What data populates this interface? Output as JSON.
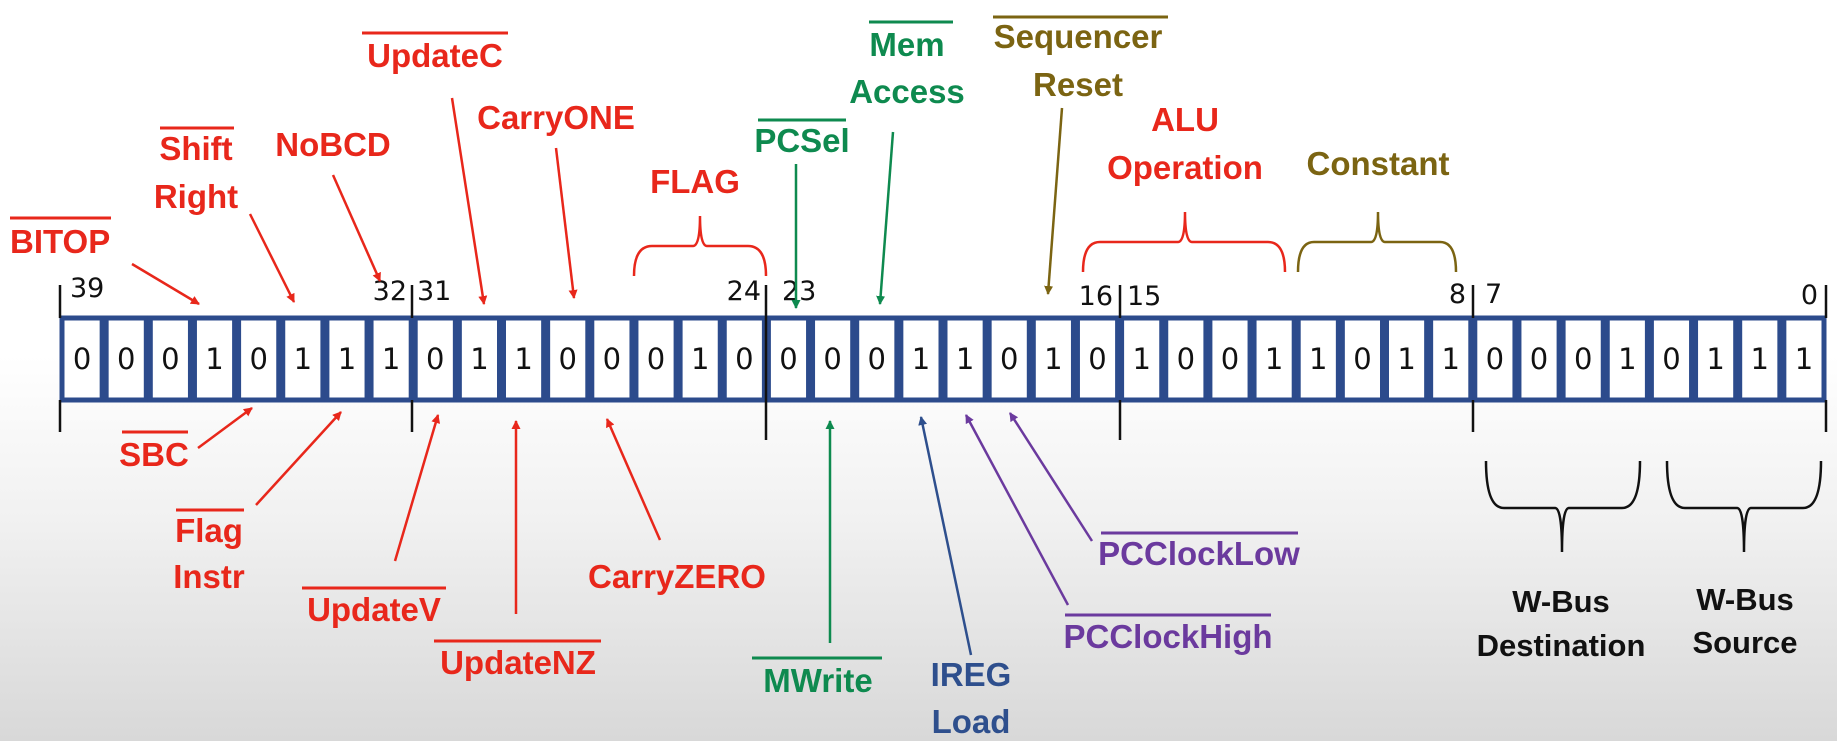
{
  "colors": {
    "red": "#e8271b",
    "green": "#0e8a4f",
    "olive": "#7b6412",
    "purple": "#6b3a9e",
    "blue": "#2e4f8d",
    "cell_border": "#2c4b8c",
    "black": "#111111"
  },
  "bits": [
    "0",
    "0",
    "0",
    "1",
    "0",
    "1",
    "1",
    "1",
    "0",
    "1",
    "1",
    "0",
    "0",
    "0",
    "1",
    "0",
    "0",
    "0",
    "0",
    "1",
    "1",
    "0",
    "1",
    "0",
    "1",
    "0",
    "0",
    "1",
    "1",
    "0",
    "1",
    "1",
    "0",
    "0",
    "0",
    "1",
    "0",
    "1",
    "1",
    "1"
  ],
  "bit_numbers": {
    "b39": "39",
    "b32": "32",
    "b31": "31",
    "b24": "24",
    "b23": "23",
    "b16": "16",
    "b15": "15",
    "b8": "8",
    "b7": "7",
    "b0": "0"
  },
  "labels": {
    "bitop": "BITOP",
    "shift_right_1": "Shift",
    "shift_right_2": "Right",
    "nobcd": "NoBCD",
    "updatec": "UpdateC",
    "carryone": "CarryONE",
    "flag": "FLAG",
    "pcsel": "PCSel",
    "mem_access_1": "Mem",
    "mem_access_2": "Access",
    "sequencer_reset_1": "Sequencer",
    "sequencer_reset_2": "Reset",
    "alu_operation_1": "ALU",
    "alu_operation_2": "Operation",
    "constant": "Constant",
    "sbc": "SBC",
    "flag_instr_1": "Flag",
    "flag_instr_2": "Instr",
    "updatev": "UpdateV",
    "updatenz": "UpdateNZ",
    "carryzero": "CarryZERO",
    "mwrite": "MWrite",
    "ireg_load_1": "IREG",
    "ireg_load_2": "Load",
    "pcclockhigh": "PCClockHigh",
    "pcclocklow": "PCClockLow",
    "wbus_destination_1": "W-Bus",
    "wbus_destination_2": "Destination",
    "wbus_source_1": "W-Bus",
    "wbus_source_2": "Source"
  }
}
